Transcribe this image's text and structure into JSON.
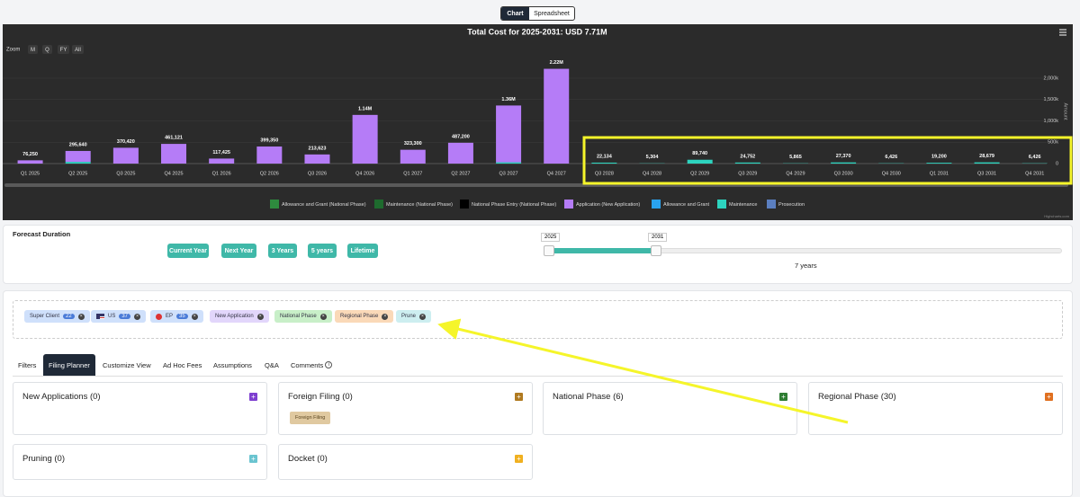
{
  "view_toggle": [
    "Chart",
    "Spreadsheet"
  ],
  "chart_data": {
    "type": "bar",
    "stacked": true,
    "title": "Total Cost for 2025-2031: USD 7.71M",
    "zoom_label": "Zoom",
    "zoom_buttons": [
      "M",
      "Q",
      "FY",
      "All"
    ],
    "categories": [
      "Q1 2025",
      "Q2 2025",
      "Q3 2025",
      "Q4 2025",
      "Q1 2026",
      "Q2 2026",
      "Q3 2026",
      "Q4 2026",
      "Q1 2027",
      "Q2 2027",
      "Q3 2027",
      "Q4 2027",
      "Q3 2028",
      "Q4 2028",
      "Q2 2029",
      "Q3 2029",
      "Q4 2029",
      "Q3 2030",
      "Q4 2030",
      "Q1 2031",
      "Q3 2031",
      "Q4 2031"
    ],
    "series": [
      {
        "name": "Allowance and Grant (National Phase)",
        "color": "#2e8b3e",
        "values": [
          0,
          0,
          0,
          0,
          0,
          0,
          0,
          0,
          0,
          0,
          0,
          0,
          0,
          0,
          0,
          0,
          0,
          0,
          0,
          0,
          0,
          0
        ]
      },
      {
        "name": "Maintenance (National Phase)",
        "color": "#1e6b2e",
        "values": [
          0,
          0,
          0,
          0,
          0,
          0,
          0,
          0,
          0,
          0,
          0,
          0,
          0,
          0,
          0,
          0,
          0,
          0,
          0,
          0,
          0,
          0
        ]
      },
      {
        "name": "National Phase Entry (National Phase)",
        "color": "#000000",
        "values": [
          0,
          0,
          0,
          0,
          0,
          0,
          0,
          0,
          0,
          0,
          0,
          0,
          0,
          0,
          0,
          0,
          0,
          0,
          0,
          0,
          0,
          0
        ]
      },
      {
        "name": "Application (New Application)",
        "color": "#b57cf7",
        "values": [
          76250,
          255640,
          370420,
          461121,
          117425,
          399350,
          213623,
          1140000,
          323300,
          487200,
          1330000,
          2220000,
          0,
          0,
          0,
          0,
          0,
          0,
          0,
          0,
          0,
          0
        ]
      },
      {
        "name": "Allowance and Grant",
        "color": "#29a3f0",
        "values": [
          0,
          0,
          0,
          0,
          0,
          0,
          0,
          0,
          0,
          0,
          0,
          0,
          0,
          0,
          0,
          0,
          0,
          0,
          0,
          0,
          0,
          0
        ]
      },
      {
        "name": "Maintenance",
        "color": "#2dd4bf",
        "values": [
          0,
          40000,
          0,
          0,
          0,
          0,
          0,
          0,
          0,
          0,
          30000,
          0,
          22134,
          5304,
          89740,
          24752,
          5865,
          27370,
          6426,
          19200,
          28679,
          6426
        ]
      },
      {
        "name": "Prosecution",
        "color": "#5b7fc0",
        "values": [
          0,
          0,
          0,
          0,
          0,
          0,
          0,
          0,
          0,
          0,
          0,
          0,
          0,
          0,
          0,
          0,
          0,
          0,
          0,
          0,
          0,
          0
        ]
      }
    ],
    "totals": {
      "values": [
        76250,
        295640,
        370420,
        461121,
        117425,
        399350,
        213623,
        1140000,
        323300,
        487200,
        1360000,
        2220000,
        22134,
        5304,
        89740,
        24752,
        5865,
        27370,
        6426,
        19200,
        28679,
        6426
      ],
      "value_labels": [
        "76,250",
        "295,640",
        "370,420",
        "461,121",
        "117,425",
        "399,350",
        "213,623",
        "1.14M",
        "323,300",
        "487,200",
        "1.36M",
        "2.22M",
        "22,134",
        "5,304",
        "89,740",
        "24,752",
        "5,865",
        "27,370",
        "6,426",
        "19,200",
        "28,679",
        "6,426"
      ]
    },
    "ylim": [
      0,
      2500000
    ],
    "yticks": [
      0,
      {
        "value": 500000,
        "label": "500k"
      },
      {
        "value": 1000000,
        "label": "1,000k"
      },
      {
        "value": 1500000,
        "label": "1,500k"
      },
      {
        "value": 2000000,
        "label": "2,000k"
      }
    ],
    "y_axis_title": "Amount",
    "y_axis_side": "right",
    "grid": true,
    "legend_position": "bottom",
    "credit": "Highcharts.com"
  },
  "forecast": {
    "title": "Forecast Duration",
    "buttons": [
      "Current Year",
      "Next Year",
      "3 Years",
      "5 years",
      "Lifetime"
    ],
    "range_start": "2025",
    "range_end": "2031",
    "duration": "7 years"
  },
  "chips": [
    {
      "label": "Super Client",
      "count": "22"
    },
    {
      "label": "US",
      "count": "37"
    },
    {
      "label": "EP",
      "count": "35"
    },
    {
      "label": "New Application"
    },
    {
      "label": "National Phase"
    },
    {
      "label": "Regional Phase"
    },
    {
      "label": "Prune"
    }
  ],
  "tabs": [
    "Filters",
    "Filing Planner",
    "Customize View",
    "Ad Hoc Fees",
    "Assumptions",
    "Q&A",
    "Comments"
  ],
  "active_tab": 1,
  "cards": [
    {
      "title": "New Applications (0)",
      "tags": []
    },
    {
      "title": "Foreign Filing (0)",
      "tags": [
        "Foreign Filing"
      ]
    },
    {
      "title": "National Phase (6)",
      "tags": []
    },
    {
      "title": "Regional Phase (30)",
      "tags": []
    },
    {
      "title": "Pruning (0)",
      "tags": []
    },
    {
      "title": "Docket (0)",
      "tags": []
    }
  ]
}
